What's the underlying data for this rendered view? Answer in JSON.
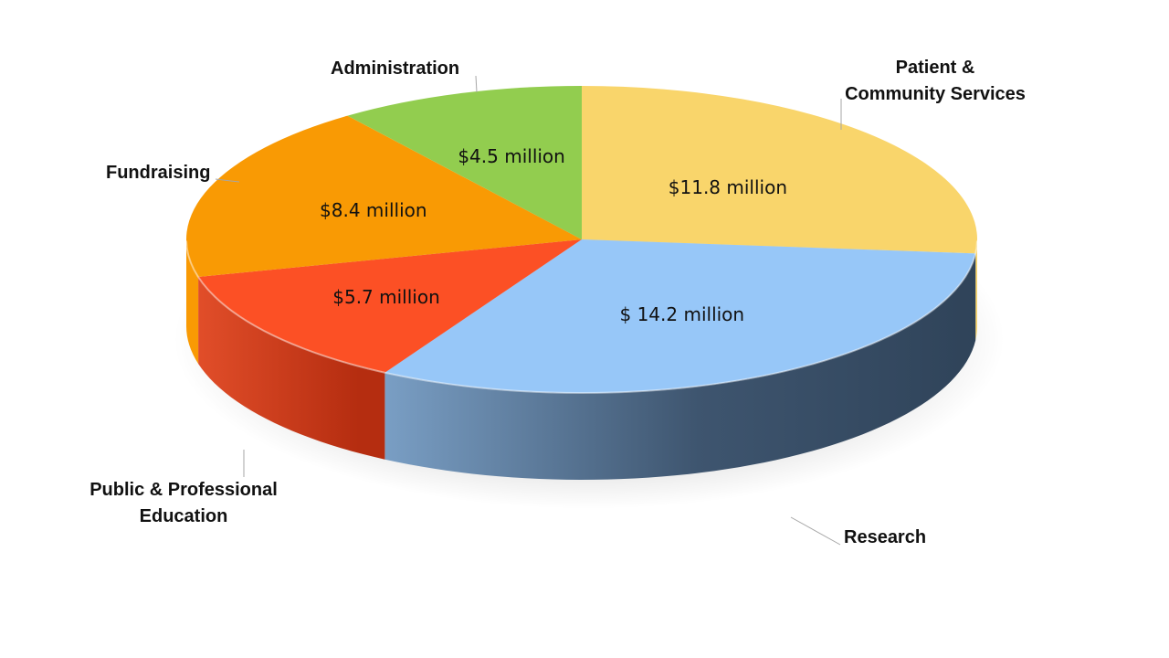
{
  "chart_data": {
    "type": "pie",
    "style": "3d",
    "slices": [
      {
        "category": "Patient & Community Services",
        "category_lines": [
          "Patient &",
          "Community Services"
        ],
        "value": 11.8,
        "data_label": "$11.8 million",
        "color": "#F9D56B"
      },
      {
        "category": "Research",
        "category_lines": [
          "Research"
        ],
        "value": 14.2,
        "data_label": "$ 14.2 million",
        "color": "#97C7F8"
      },
      {
        "category": "Public & Professional Education",
        "category_lines": [
          "Public & Professional",
          "Education"
        ],
        "value": 5.7,
        "data_label": "$5.7 million",
        "color": "#FC5025"
      },
      {
        "category": "Fundraising",
        "category_lines": [
          "Fundraising"
        ],
        "value": 8.4,
        "data_label": "$8.4 million",
        "color": "#F99A04"
      },
      {
        "category": "Administration",
        "category_lines": [
          "Administration"
        ],
        "value": 4.5,
        "data_label": "$4.5 million",
        "color": "#92CD4F"
      }
    ],
    "colors": {
      "research_side_dark": "#344B63",
      "research_side_light": "#7FA5CC",
      "education_side_dark": "#B52D10",
      "education_side_light": "#E4502B"
    },
    "legend": "none",
    "grid": false
  }
}
